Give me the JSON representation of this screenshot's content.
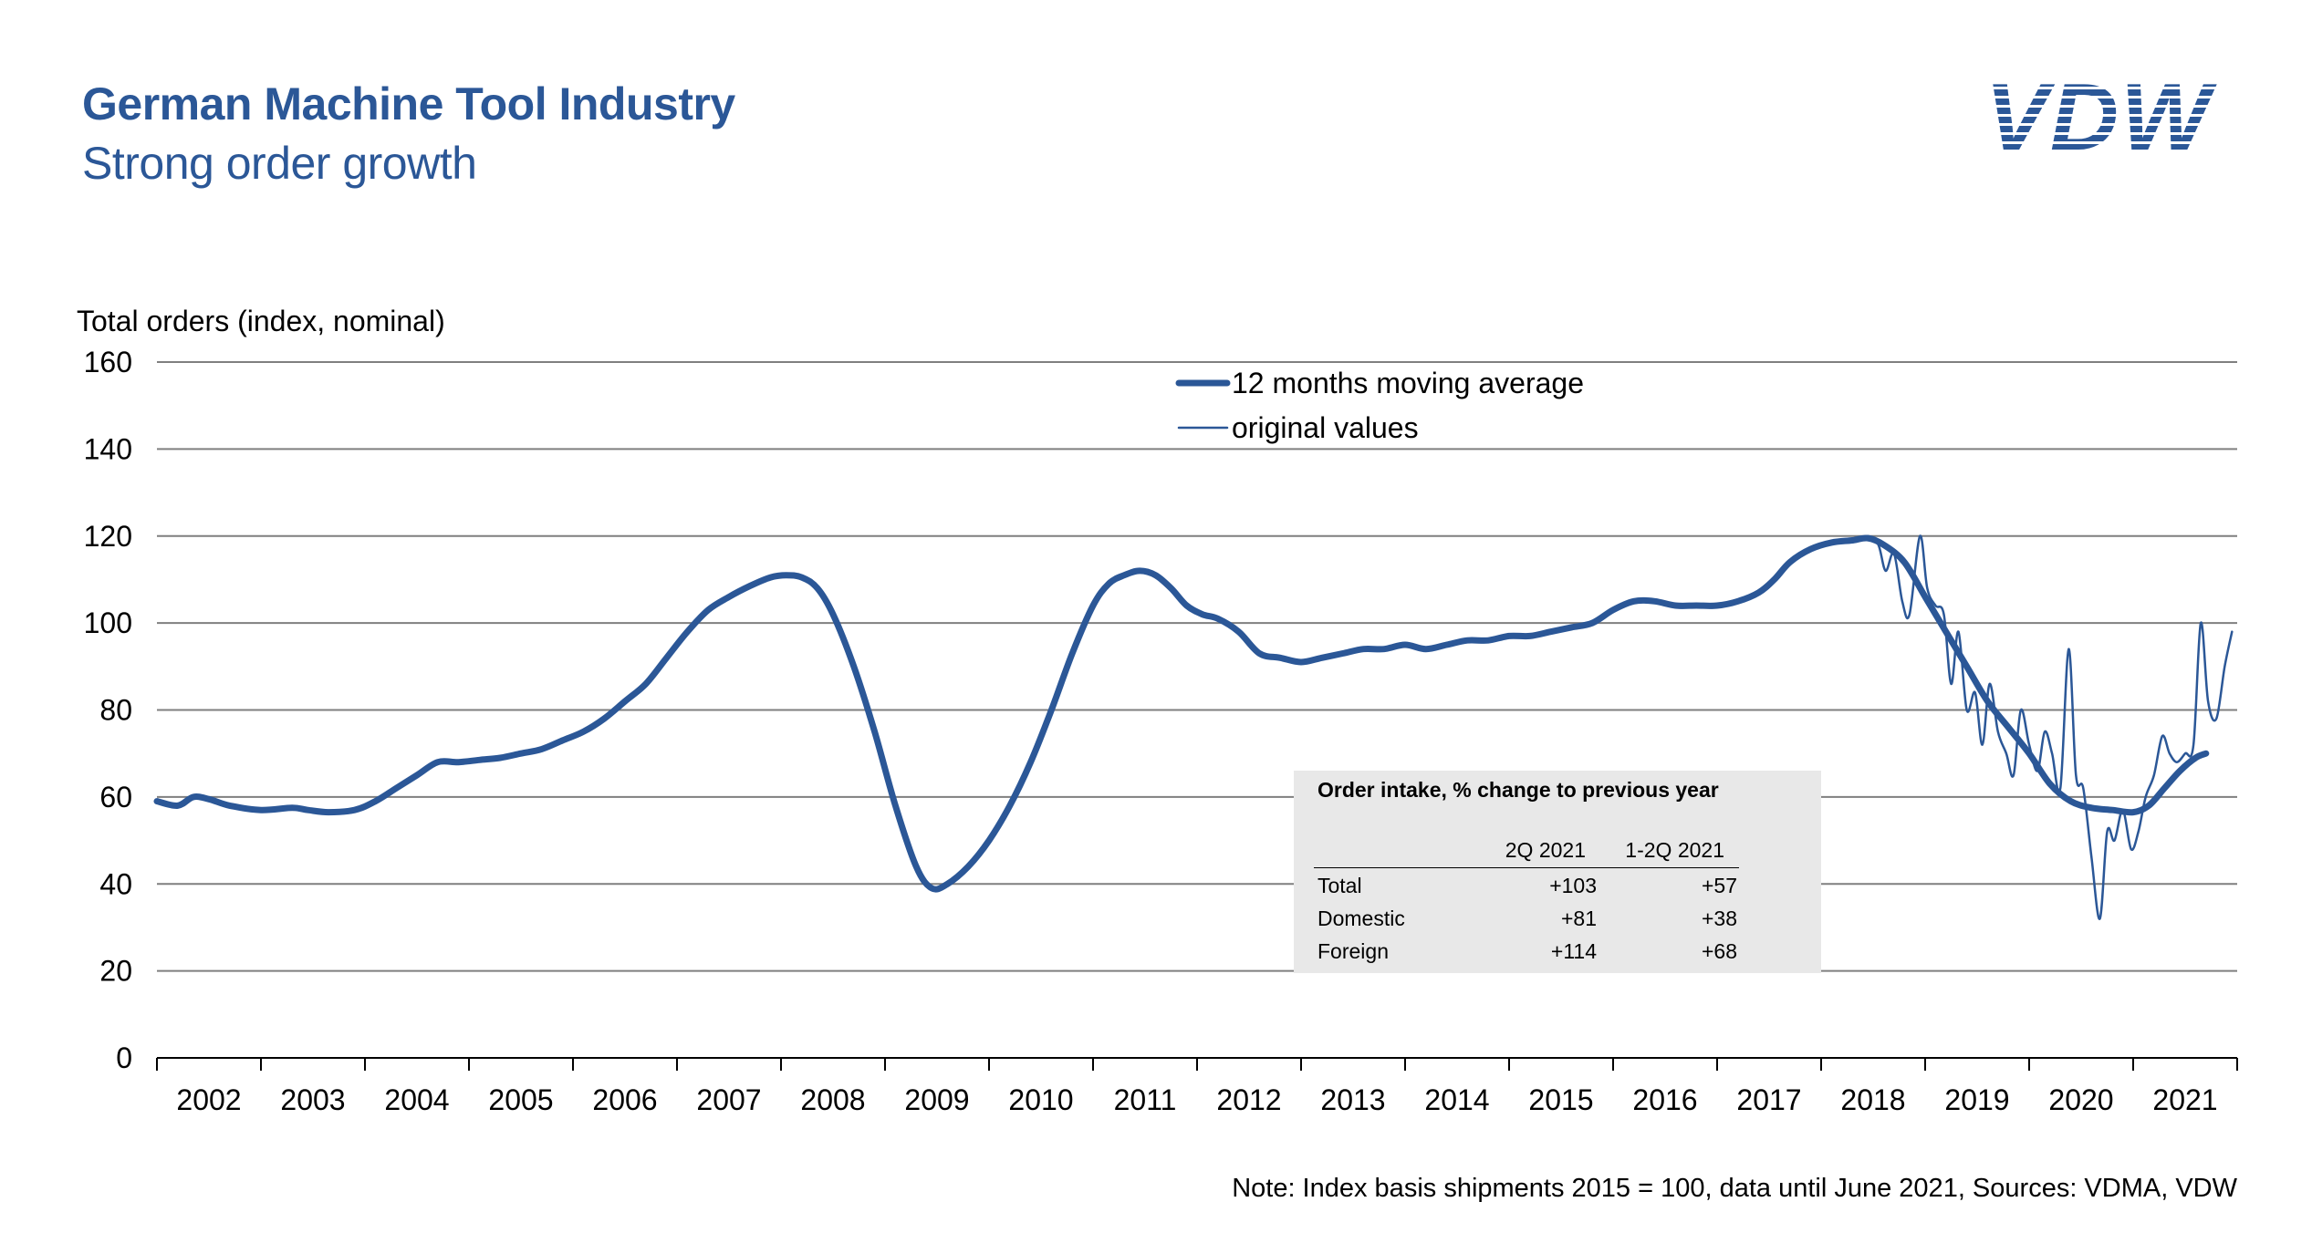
{
  "header": {
    "title": "German Machine Tool Industry",
    "subtitle": "Strong order growth",
    "logo_text": "VDW"
  },
  "footer": {
    "note": "Note: Index basis shipments 2015 = 100, data until June 2021, Sources: VDMA, VDW"
  },
  "colors": {
    "accent": "#2b5797",
    "grid": "#7f7f7f",
    "table_bg": "#e8e8e8"
  },
  "table": {
    "title": "Order intake, % change to previous year",
    "col1": "2Q 2021",
    "col2": "1-2Q 2021",
    "rows": [
      {
        "label": "Total",
        "v1": "+103",
        "v2": "+57"
      },
      {
        "label": "Domestic",
        "v1": "+81",
        "v2": "+38"
      },
      {
        "label": "Foreign",
        "v1": "+114",
        "v2": "+68"
      }
    ]
  },
  "chart_data": {
    "type": "line",
    "ylabel": "Total orders (index, nominal)",
    "ylim": [
      0,
      160
    ],
    "yticks": [
      0,
      20,
      40,
      60,
      80,
      100,
      120,
      140,
      160
    ],
    "xlim": [
      2001.5,
      2021.5
    ],
    "year_labels": [
      "2002",
      "2003",
      "2004",
      "2005",
      "2006",
      "2007",
      "2008",
      "2009",
      "2010",
      "2011",
      "2012",
      "2013",
      "2014",
      "2015",
      "2016",
      "2017",
      "2018",
      "2019",
      "2020",
      "2021"
    ],
    "grid": "horizontal",
    "legend_position": "top-center",
    "series": [
      {
        "name": "12 months moving average",
        "style": "thick",
        "x": [
          2001.5,
          2001.7,
          2001.85,
          2002.0,
          2002.2,
          2002.5,
          2002.8,
          2002.95,
          2003.15,
          2003.4,
          2003.6,
          2003.8,
          2004.0,
          2004.2,
          2004.4,
          2004.6,
          2004.8,
          2005.0,
          2005.2,
          2005.4,
          2005.6,
          2005.8,
          2006.0,
          2006.2,
          2006.4,
          2006.6,
          2006.8,
          2007.0,
          2007.2,
          2007.4,
          2007.55,
          2007.7,
          2007.85,
          2008.0,
          2008.2,
          2008.4,
          2008.6,
          2008.8,
          2008.95,
          2009.1,
          2009.3,
          2009.5,
          2009.7,
          2009.9,
          2010.1,
          2010.3,
          2010.5,
          2010.65,
          2010.8,
          2010.95,
          2011.1,
          2011.25,
          2011.4,
          2011.55,
          2011.7,
          2011.9,
          2012.1,
          2012.3,
          2012.5,
          2012.7,
          2012.9,
          2013.1,
          2013.3,
          2013.5,
          2013.7,
          2013.9,
          2014.1,
          2014.3,
          2014.5,
          2014.7,
          2014.9,
          2015.1,
          2015.3,
          2015.5,
          2015.7,
          2015.9,
          2016.1,
          2016.3,
          2016.5,
          2016.7,
          2016.9,
          2017.05,
          2017.2,
          2017.4,
          2017.6,
          2017.8,
          2017.95,
          2018.1,
          2018.3,
          2018.5,
          2018.7,
          2018.9,
          2019.1,
          2019.3,
          2019.5,
          2019.7,
          2019.9,
          2020.1,
          2020.3,
          2020.5,
          2020.65,
          2020.8,
          2020.95,
          2021.1,
          2021.2
        ],
        "y": [
          59,
          58,
          60,
          59.5,
          58,
          57,
          57.5,
          57,
          56.5,
          57,
          59,
          62,
          65,
          68,
          68,
          68.5,
          69,
          70,
          71,
          73,
          75,
          78,
          82,
          86,
          92,
          98,
          103,
          106,
          108.5,
          110.5,
          111,
          110.5,
          108,
          102,
          90,
          75,
          58,
          44,
          39,
          40,
          44,
          50,
          58,
          68,
          80,
          93,
          104,
          109,
          111,
          112,
          111,
          108,
          104,
          102,
          101,
          98,
          93,
          92,
          91,
          92,
          93,
          94,
          94,
          95,
          94,
          95,
          96,
          96,
          97,
          97,
          98,
          99,
          100,
          103,
          105,
          105,
          104,
          104,
          104,
          105,
          107,
          110,
          114,
          117,
          118.5,
          119,
          119.5,
          118,
          114,
          106,
          98,
          90,
          82,
          76,
          70,
          63,
          59,
          57.5,
          57,
          56.5,
          58,
          62,
          66,
          69,
          70
        ]
      },
      {
        "name": "original values",
        "style": "thin",
        "x": [
          2017.8,
          2017.95,
          2018.05,
          2018.12,
          2018.2,
          2018.28,
          2018.35,
          2018.45,
          2018.52,
          2018.6,
          2018.68,
          2018.75,
          2018.82,
          2018.9,
          2018.98,
          2019.05,
          2019.12,
          2019.2,
          2019.28,
          2019.35,
          2019.42,
          2019.5,
          2019.58,
          2019.65,
          2019.72,
          2019.8,
          2019.88,
          2019.95,
          2020.02,
          2020.1,
          2020.18,
          2020.25,
          2020.32,
          2020.4,
          2020.48,
          2020.55,
          2020.62,
          2020.7,
          2020.78,
          2020.85,
          2020.92,
          2021.0,
          2021.08,
          2021.15,
          2021.22,
          2021.3,
          2021.38,
          2021.45
        ],
        "y": [
          119,
          120,
          118,
          112,
          116,
          105,
          102,
          120,
          108,
          104,
          102,
          86,
          98,
          80,
          84,
          72,
          86,
          75,
          70,
          65,
          80,
          72,
          66,
          75,
          70,
          62,
          94,
          65,
          62,
          46,
          32,
          52,
          50,
          57,
          48,
          52,
          60,
          65,
          74,
          70,
          68,
          70,
          72,
          100,
          82,
          78,
          90,
          98
        ]
      }
    ]
  }
}
